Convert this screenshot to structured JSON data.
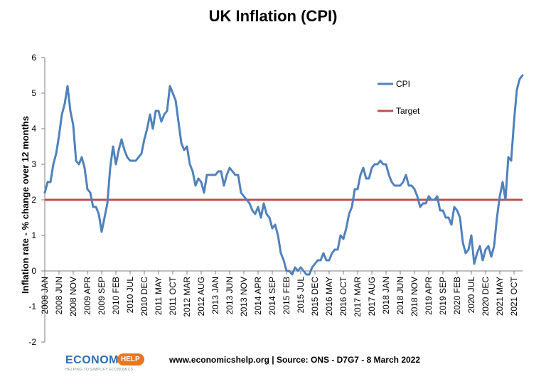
{
  "chart_data": {
    "type": "line",
    "title": "UK Inflation (CPI)",
    "ylabel": "Inflation rate  - % change over 12 months",
    "xlabel": "",
    "ylim": [
      -2,
      6
    ],
    "yticks": [
      "-2",
      "-1",
      "0",
      "1",
      "2",
      "3",
      "4",
      "5",
      "6"
    ],
    "grid": false,
    "legend_position": "top-right",
    "x_tick_labels": [
      "2008 JAN",
      "2008 JUN",
      "2008 NOV",
      "2009 APR",
      "2009 SEP",
      "2010 FEB",
      "2010 JUL",
      "2010 DEC",
      "2011 MAY",
      "2011 OCT",
      "2012 MAR",
      "2012 AUG",
      "2013 JAN",
      "2013 JUN",
      "2013 NOV",
      "2014 APR",
      "2014 SEP",
      "2015 FEB",
      "2015 JUL",
      "2015 DEC",
      "2016 MAY",
      "2016 OCT",
      "2017 MAR",
      "2017 AUG",
      "2018 JAN",
      "2018 JUN",
      "2018 NOV",
      "2019 APR",
      "2019 SEP",
      "2020 FEB",
      "2020 JUL",
      "2020 DEC",
      "2021 MAY",
      "2021 OCT"
    ],
    "series": [
      {
        "name": "CPI",
        "color": "#4f81bd",
        "x_start": "2008 JAN",
        "values": [
          2.2,
          2.5,
          2.5,
          3.0,
          3.3,
          3.8,
          4.4,
          4.7,
          5.2,
          4.5,
          4.1,
          3.1,
          3.0,
          3.2,
          2.9,
          2.3,
          2.2,
          1.8,
          1.8,
          1.6,
          1.1,
          1.5,
          1.9,
          2.9,
          3.5,
          3.0,
          3.4,
          3.7,
          3.4,
          3.2,
          3.1,
          3.1,
          3.1,
          3.2,
          3.3,
          3.7,
          4.0,
          4.4,
          4.0,
          4.5,
          4.5,
          4.2,
          4.4,
          4.5,
          5.2,
          5.0,
          4.8,
          4.2,
          3.6,
          3.4,
          3.5,
          3.0,
          2.8,
          2.4,
          2.6,
          2.5,
          2.2,
          2.7,
          2.7,
          2.7,
          2.7,
          2.8,
          2.8,
          2.4,
          2.7,
          2.9,
          2.8,
          2.7,
          2.7,
          2.2,
          2.1,
          2.0,
          1.9,
          1.7,
          1.6,
          1.8,
          1.5,
          1.9,
          1.6,
          1.5,
          1.2,
          1.3,
          1.0,
          0.5,
          0.3,
          0.0,
          0.0,
          -0.1,
          0.1,
          0.0,
          0.1,
          0.0,
          -0.1,
          -0.1,
          0.1,
          0.2,
          0.3,
          0.3,
          0.5,
          0.3,
          0.3,
          0.5,
          0.6,
          0.6,
          1.0,
          0.9,
          1.2,
          1.6,
          1.8,
          2.3,
          2.3,
          2.7,
          2.9,
          2.6,
          2.6,
          2.9,
          3.0,
          3.0,
          3.1,
          3.0,
          3.0,
          2.7,
          2.5,
          2.4,
          2.4,
          2.4,
          2.5,
          2.7,
          2.4,
          2.4,
          2.3,
          2.1,
          1.8,
          1.9,
          1.9,
          2.1,
          2.0,
          2.0,
          2.1,
          1.7,
          1.7,
          1.5,
          1.5,
          1.3,
          1.8,
          1.7,
          1.5,
          0.8,
          0.5,
          0.6,
          1.0,
          0.2,
          0.5,
          0.7,
          0.3,
          0.6,
          0.7,
          0.4,
          0.7,
          1.5,
          2.1,
          2.5,
          2.0,
          3.2,
          3.1,
          4.2,
          5.1,
          5.4,
          5.5
        ]
      },
      {
        "name": "Target",
        "color": "#c0504d",
        "value": 2
      }
    ]
  },
  "footer": {
    "logo_text": "ECONOMICS",
    "logo_badge": "HELP",
    "logo_tagline": "HELPING TO SIMPLIFY ECONOMICS",
    "source": "www.economicshelp.org | Source: ONS - D7G7 - 8 March 2022"
  }
}
